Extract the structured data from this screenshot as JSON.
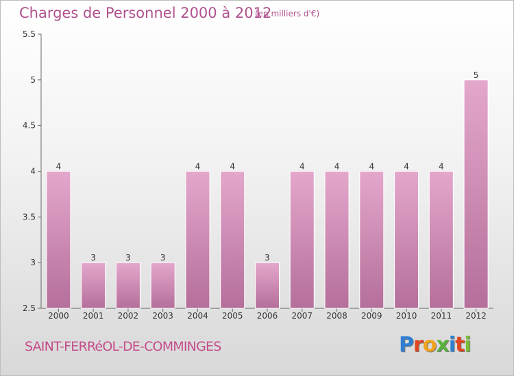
{
  "title": "Charges de Personnel 2000 à 2012",
  "subtitle": "(en milliers d'€)",
  "commune": "SAINT-FERRéOL-DE-COMMINGES",
  "logo": {
    "text": "Proxiti",
    "letter_colors": [
      "#2f7fd0",
      "#e0461f",
      "#f0a21c",
      "#58b23a",
      "#2f7fd0",
      "#e0461f",
      "#7abf32"
    ]
  },
  "colors": {
    "bar_top": "#e4a7cc",
    "bar_bottom": "#b46f9a",
    "title": "#b0518d"
  },
  "chart_data": {
    "type": "bar",
    "title": "Charges de Personnel 2000 à 2012",
    "subtitle": "(en milliers d'€)",
    "categories": [
      "2000",
      "2001",
      "2002",
      "2003",
      "2004",
      "2005",
      "2006",
      "2007",
      "2008",
      "2009",
      "2010",
      "2011",
      "2012"
    ],
    "values": [
      4,
      3,
      3,
      3,
      4,
      4,
      3,
      4,
      4,
      4,
      4,
      4,
      5
    ],
    "data_labels": [
      "4",
      "3",
      "3",
      "3",
      "4",
      "4",
      "3",
      "4",
      "4",
      "4",
      "4",
      "4",
      "5"
    ],
    "ylim": [
      2.5,
      5.5
    ],
    "yticks": [
      2.5,
      3,
      3.5,
      4,
      4.5,
      5,
      5.5
    ],
    "ytick_labels": [
      "2.5",
      "3",
      "3.5",
      "4",
      "4.5",
      "5",
      "5.5"
    ],
    "xlabel": "",
    "ylabel": "",
    "grid": false
  }
}
